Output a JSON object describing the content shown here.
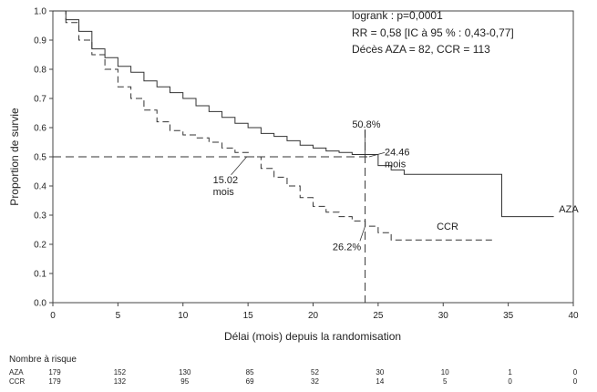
{
  "chart_data": {
    "type": "line",
    "xlabel": "Délai (mois) depuis la randomisation",
    "ylabel": "Proportion de survie",
    "xlim": [
      0,
      40
    ],
    "ylim": [
      0,
      1.0
    ],
    "x_ticks": [
      0,
      5,
      10,
      15,
      20,
      25,
      30,
      35,
      40
    ],
    "y_ticks": [
      0.0,
      0.1,
      0.2,
      0.3,
      0.4,
      0.5,
      0.6,
      0.7,
      0.8,
      0.9,
      1.0
    ],
    "grid": false,
    "stats_text": [
      "logrank : p=0,0001",
      "RR = 0,58 [IC à 95 % : 0,43-0,77]",
      "Décès   AZA = 82, CCR = 113"
    ],
    "series": [
      {
        "name": "AZA",
        "style": "solid",
        "x": [
          0,
          1,
          2,
          3,
          4,
          5,
          6,
          7,
          8,
          9,
          10,
          11,
          12,
          13,
          14,
          15,
          16,
          17,
          18,
          19,
          20,
          21,
          22,
          23,
          24.46,
          25,
          26,
          27,
          28,
          30,
          32,
          34.5,
          34.5,
          36,
          38.5
        ],
        "values": [
          1.0,
          0.97,
          0.93,
          0.87,
          0.84,
          0.81,
          0.79,
          0.76,
          0.74,
          0.72,
          0.7,
          0.675,
          0.655,
          0.635,
          0.615,
          0.6,
          0.58,
          0.57,
          0.555,
          0.54,
          0.53,
          0.52,
          0.515,
          0.508,
          0.508,
          0.47,
          0.455,
          0.44,
          0.44,
          0.44,
          0.44,
          0.44,
          0.295,
          0.295,
          0.295
        ]
      },
      {
        "name": "CCR",
        "style": "dashed",
        "x": [
          0,
          1,
          2,
          3,
          4,
          5,
          6,
          7,
          8,
          9,
          10,
          11,
          12,
          13,
          14,
          15.02,
          16,
          17,
          18,
          19,
          20,
          21,
          22,
          23,
          24,
          25,
          26,
          28,
          30,
          34
        ],
        "values": [
          1.0,
          0.96,
          0.9,
          0.85,
          0.8,
          0.74,
          0.7,
          0.66,
          0.62,
          0.59,
          0.575,
          0.565,
          0.55,
          0.53,
          0.515,
          0.5,
          0.46,
          0.43,
          0.4,
          0.36,
          0.33,
          0.31,
          0.295,
          0.28,
          0.262,
          0.24,
          0.215,
          0.215,
          0.215,
          0.215
        ]
      }
    ],
    "median_lines": [
      {
        "x": 15.02,
        "y": 0.5
      },
      {
        "x": 24.46,
        "y": 0.5
      }
    ],
    "reference_x": 24,
    "annotations": [
      {
        "id": "aza-median",
        "lines": [
          "24.46",
          "mois"
        ],
        "x": 25.5,
        "y": 0.505,
        "target_x": 24.3,
        "target_y": 0.5
      },
      {
        "id": "ccr-median",
        "lines": [
          "15.02",
          "mois"
        ],
        "x": 12.3,
        "y": 0.41,
        "target_x": 14.9,
        "target_y": 0.5
      },
      {
        "id": "aza-pct",
        "lines": [
          "50.8%"
        ],
        "x": 23.0,
        "y": 0.6,
        "target_x": 24,
        "target_y": 0.508
      },
      {
        "id": "ccr-pct",
        "lines": [
          "26.2%"
        ],
        "x": 21.5,
        "y": 0.18,
        "target_x": 24,
        "target_y": 0.262
      },
      {
        "id": "aza-label",
        "lines": [
          "AZA"
        ],
        "x": 38.9,
        "y": 0.31
      },
      {
        "id": "ccr-label",
        "lines": [
          "CCR"
        ],
        "x": 29.5,
        "y": 0.25
      }
    ],
    "risk_table": {
      "title": "Nombre à risque",
      "times": [
        0,
        5,
        10,
        15,
        20,
        25,
        30,
        35,
        40
      ],
      "rows": [
        {
          "label": "AZA",
          "counts": [
            "179",
            "152",
            "130",
            "85",
            "52",
            "30",
            "10",
            "1",
            "0"
          ]
        },
        {
          "label": "CCR",
          "counts": [
            "179",
            "132",
            "95",
            "69",
            "32",
            "14",
            "5",
            "0",
            "0"
          ]
        }
      ]
    }
  }
}
